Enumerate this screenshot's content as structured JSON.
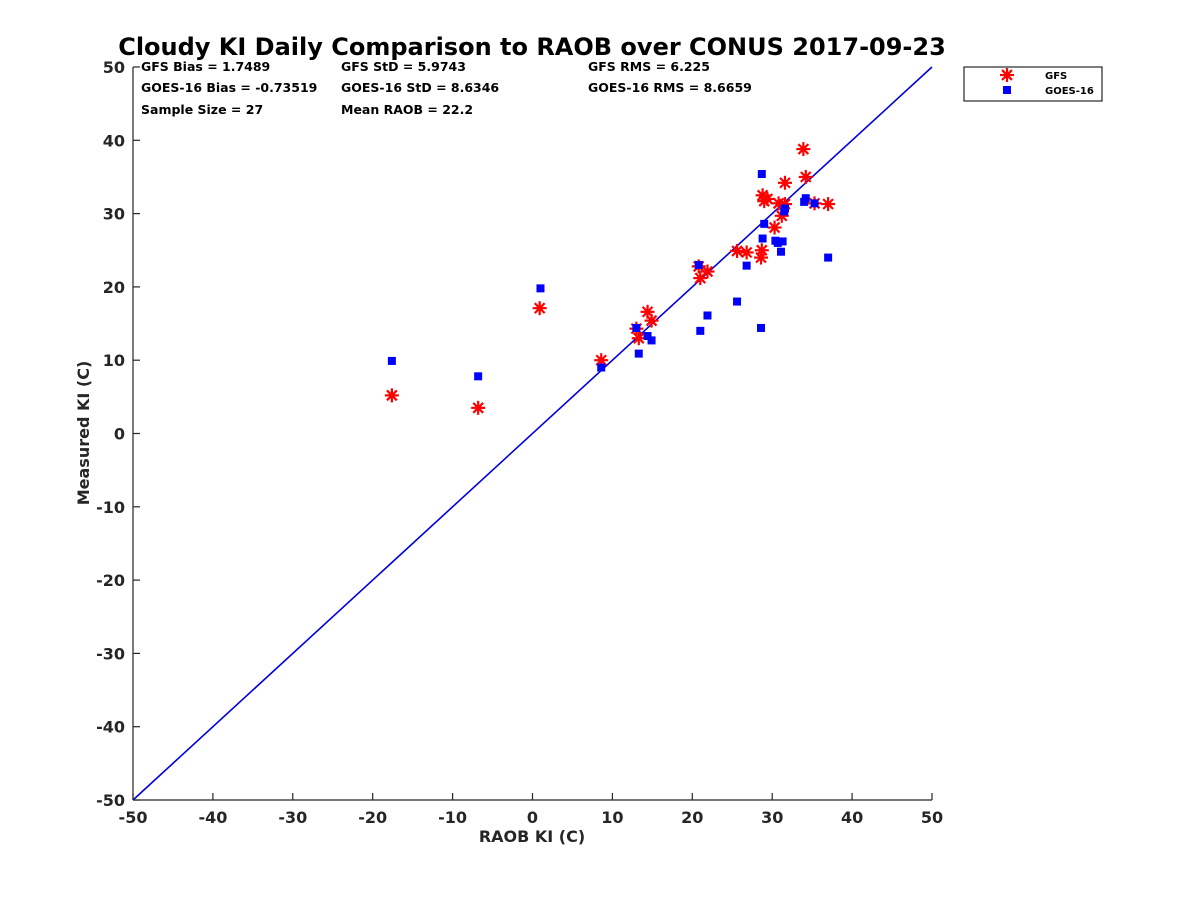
{
  "chart_data": {
    "type": "scatter",
    "title": "Cloudy KI Daily Comparison to RAOB over CONUS 2017-09-23",
    "xlabel": "RAOB KI (C)",
    "ylabel": "Measured KI (C)",
    "xlim": [
      -50,
      50
    ],
    "ylim": [
      -50,
      50
    ],
    "xticks": [
      "-50",
      "-40",
      "-30",
      "-20",
      "-10",
      "0",
      "10",
      "20",
      "30",
      "40",
      "50"
    ],
    "yticks": [
      "-50",
      "-40",
      "-30",
      "-20",
      "-10",
      "0",
      "10",
      "20",
      "30",
      "40",
      "50"
    ],
    "grid": false,
    "legend_position": "outside-top-right",
    "reference_line": {
      "type": "one-to-one",
      "color": "#0000dd"
    },
    "stats": [
      [
        "GFS Bias = 1.7489",
        "GFS StD = 5.9743",
        "GFS RMS = 6.225"
      ],
      [
        "GOES-16 Bias = -0.73519",
        "GOES-16 StD = 8.6346",
        "GOES-16 RMS = 8.6659"
      ],
      [
        "Sample Size = 27",
        "Mean RAOB = 22.2",
        ""
      ]
    ],
    "series": [
      {
        "name": "GFS",
        "marker": "asterisk",
        "color": "#ff0000",
        "points": [
          [
            -17.6,
            5.2
          ],
          [
            -6.8,
            3.5
          ],
          [
            0.9,
            17.1
          ],
          [
            8.6,
            10.0
          ],
          [
            13.0,
            14.3
          ],
          [
            13.3,
            13.0
          ],
          [
            14.4,
            16.6
          ],
          [
            14.9,
            15.4
          ],
          [
            20.8,
            22.8
          ],
          [
            21.0,
            21.2
          ],
          [
            21.9,
            22.1
          ],
          [
            25.6,
            24.9
          ],
          [
            26.8,
            24.7
          ],
          [
            28.6,
            24.0
          ],
          [
            28.7,
            25.0
          ],
          [
            28.8,
            32.5
          ],
          [
            29.0,
            31.7
          ],
          [
            29.4,
            32.0
          ],
          [
            30.3,
            28.1
          ],
          [
            30.8,
            31.4
          ],
          [
            31.2,
            29.7
          ],
          [
            31.6,
            31.3
          ],
          [
            31.6,
            34.2
          ],
          [
            33.9,
            38.8
          ],
          [
            34.2,
            35.0
          ],
          [
            35.3,
            31.4
          ],
          [
            37.0,
            31.3
          ]
        ]
      },
      {
        "name": "GOES-16",
        "marker": "square",
        "color": "#0000ff",
        "points": [
          [
            -17.6,
            9.9
          ],
          [
            -6.8,
            7.8
          ],
          [
            1.0,
            19.8
          ],
          [
            8.6,
            9.0
          ],
          [
            13.0,
            14.4
          ],
          [
            13.3,
            10.9
          ],
          [
            14.4,
            13.3
          ],
          [
            14.9,
            12.7
          ],
          [
            20.8,
            23.0
          ],
          [
            21.0,
            14.0
          ],
          [
            21.9,
            16.1
          ],
          [
            25.6,
            18.0
          ],
          [
            26.8,
            22.9
          ],
          [
            28.6,
            14.4
          ],
          [
            28.7,
            35.4
          ],
          [
            28.8,
            26.6
          ],
          [
            29.0,
            28.6
          ],
          [
            30.4,
            26.3
          ],
          [
            30.7,
            26.0
          ],
          [
            31.1,
            24.8
          ],
          [
            31.3,
            26.2
          ],
          [
            31.5,
            30.3
          ],
          [
            31.6,
            30.7
          ],
          [
            34.0,
            31.6
          ],
          [
            34.2,
            32.1
          ],
          [
            35.3,
            31.4
          ],
          [
            37.0,
            24.0
          ]
        ]
      }
    ]
  }
}
